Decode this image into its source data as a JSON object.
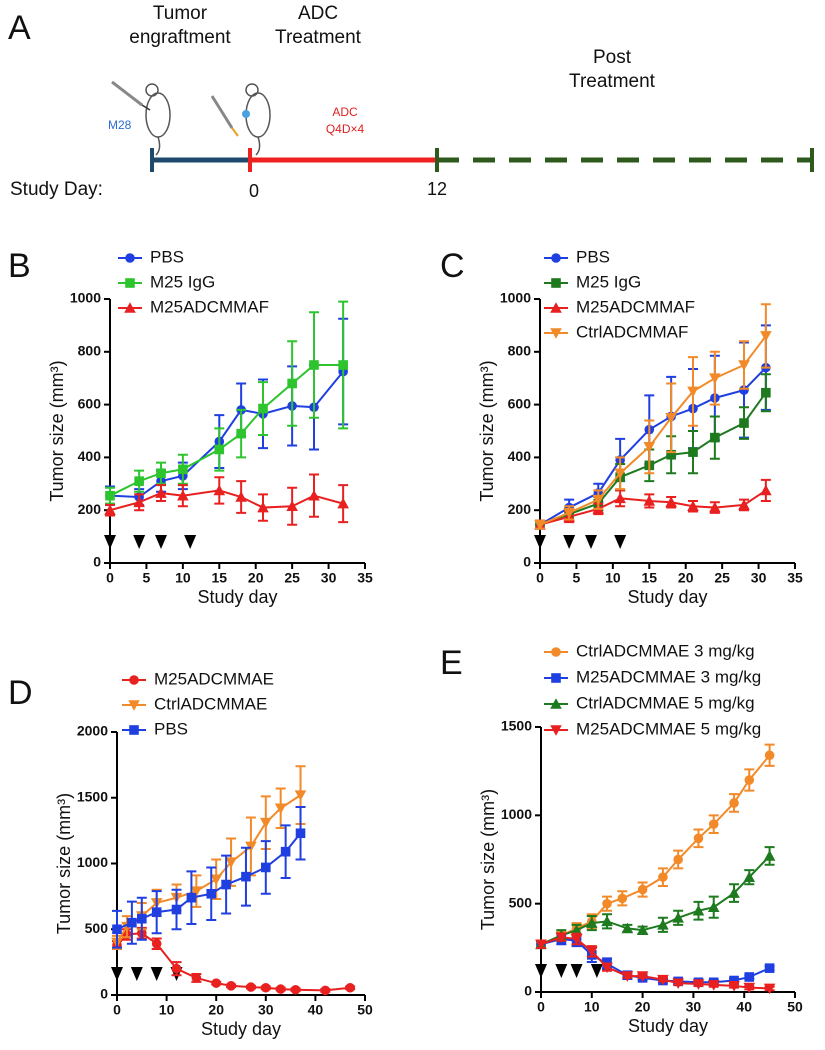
{
  "schematic": {
    "label": "A",
    "phases": [
      [
        "Tumor",
        "engraftment"
      ],
      [
        "ADC",
        "Treatment"
      ],
      [
        "Post",
        "Treatment"
      ]
    ],
    "cell_line": "M28",
    "adc": "ADC",
    "schedule": "Q4D×4",
    "study_day": "Study Day:",
    "days": [
      "0",
      "12"
    ]
  },
  "chart_data": [
    {
      "type": "line",
      "label": "B",
      "x_label": "Study day",
      "y_label": "Tumor size (mm³)",
      "xlim": [
        0,
        35
      ],
      "xticks": [
        0,
        5,
        10,
        15,
        20,
        25,
        30,
        35
      ],
      "ylim": [
        0,
        1000
      ],
      "yticks": [
        0,
        200,
        400,
        600,
        800,
        1000
      ],
      "treatment_days": [
        0,
        4,
        7,
        11
      ],
      "series": [
        {
          "name": "PBS",
          "color": "#1f3fe0",
          "marker": "circle",
          "x": [
            0,
            4,
            7,
            10,
            15,
            18,
            21,
            25,
            28,
            32
          ],
          "values": [
            255,
            250,
            310,
            330,
            460,
            580,
            565,
            595,
            590,
            725
          ],
          "errors": [
            35,
            30,
            40,
            50,
            100,
            100,
            130,
            150,
            160,
            200
          ]
        },
        {
          "name": "M25 IgG",
          "color": "#2ec42e",
          "marker": "square",
          "x": [
            0,
            4,
            7,
            10,
            15,
            18,
            21,
            25,
            28,
            32
          ],
          "values": [
            255,
            310,
            340,
            355,
            430,
            490,
            585,
            680,
            750,
            750
          ],
          "errors": [
            30,
            40,
            40,
            55,
            80,
            90,
            100,
            160,
            200,
            240
          ]
        },
        {
          "name": "M25ADCMMAF",
          "color": "#e82020",
          "marker": "triangle",
          "x": [
            0,
            4,
            7,
            10,
            15,
            18,
            21,
            25,
            28,
            32
          ],
          "values": [
            200,
            230,
            265,
            255,
            275,
            250,
            210,
            215,
            255,
            225
          ],
          "errors": [
            20,
            30,
            30,
            40,
            50,
            60,
            50,
            70,
            80,
            70
          ]
        }
      ]
    },
    {
      "type": "line",
      "label": "C",
      "x_label": "Study day",
      "y_label": "Tumor size (mm³)",
      "xlim": [
        0,
        35
      ],
      "xticks": [
        0,
        5,
        10,
        15,
        20,
        25,
        30,
        35
      ],
      "ylim": [
        0,
        1000
      ],
      "yticks": [
        0,
        200,
        400,
        600,
        800,
        1000
      ],
      "treatment_days": [
        0,
        4,
        7,
        11
      ],
      "series": [
        {
          "name": "PBS",
          "color": "#1f3fe0",
          "marker": "circle",
          "x": [
            0,
            4,
            8,
            11,
            15,
            18,
            21,
            24,
            28,
            31
          ],
          "values": [
            145,
            210,
            265,
            390,
            505,
            555,
            585,
            625,
            655,
            740
          ],
          "errors": [
            15,
            30,
            35,
            80,
            130,
            150,
            150,
            160,
            180,
            160
          ]
        },
        {
          "name": "M25 IgG",
          "color": "#1e7a1e",
          "marker": "square",
          "x": [
            0,
            4,
            8,
            11,
            15,
            18,
            21,
            24,
            28,
            31
          ],
          "values": [
            145,
            185,
            225,
            325,
            370,
            410,
            420,
            475,
            530,
            645
          ],
          "errors": [
            15,
            20,
            25,
            50,
            60,
            70,
            80,
            80,
            60,
            70
          ]
        },
        {
          "name": "M25ADCMMAF",
          "color": "#e82020",
          "marker": "triangle",
          "x": [
            0,
            4,
            8,
            11,
            15,
            18,
            21,
            24,
            28,
            31
          ],
          "values": [
            145,
            175,
            205,
            245,
            235,
            230,
            215,
            210,
            220,
            275
          ],
          "errors": [
            15,
            20,
            20,
            30,
            25,
            20,
            20,
            20,
            20,
            40
          ]
        },
        {
          "name": "CtrlADCMMAF",
          "color": "#f28a2a",
          "marker": "triangle-down",
          "x": [
            0,
            4,
            8,
            11,
            15,
            18,
            21,
            24,
            28,
            31
          ],
          "values": [
            145,
            190,
            240,
            340,
            440,
            550,
            650,
            700,
            750,
            860
          ],
          "errors": [
            15,
            25,
            35,
            60,
            100,
            130,
            130,
            100,
            90,
            120
          ]
        }
      ]
    },
    {
      "type": "line",
      "label": "D",
      "x_label": "Study day",
      "y_label": "Tumor size (mm³)",
      "xlim": [
        0,
        50
      ],
      "xticks": [
        0,
        10,
        20,
        30,
        40,
        50
      ],
      "ylim": [
        0,
        2000
      ],
      "yticks": [
        0,
        500,
        1000,
        1500,
        2000
      ],
      "treatment_days": [
        0,
        4,
        8,
        12
      ],
      "series": [
        {
          "name": "M25ADCMMAE",
          "color": "#e82020",
          "marker": "circle",
          "x": [
            0,
            2,
            5,
            8,
            12,
            16,
            20,
            23,
            27,
            30,
            33,
            36,
            42,
            47
          ],
          "values": [
            380,
            460,
            470,
            390,
            200,
            130,
            90,
            70,
            60,
            55,
            45,
            40,
            35,
            55
          ],
          "errors": [
            30,
            40,
            40,
            40,
            50,
            30,
            10,
            10,
            10,
            10,
            10,
            10,
            10,
            10
          ]
        },
        {
          "name": "CtrlADCMMAE",
          "color": "#f28a2a",
          "marker": "triangle-down",
          "x": [
            0,
            2,
            5,
            8,
            12,
            16,
            20,
            23,
            27,
            30,
            33,
            37
          ],
          "values": [
            400,
            520,
            600,
            700,
            740,
            790,
            880,
            1010,
            1130,
            1310,
            1420,
            1520
          ],
          "errors": [
            50,
            80,
            100,
            100,
            100,
            120,
            150,
            180,
            220,
            200,
            150,
            220
          ]
        },
        {
          "name": "PBS",
          "color": "#1f3fe0",
          "marker": "square",
          "x": [
            0,
            3,
            5,
            8,
            12,
            15,
            19,
            22,
            26,
            30,
            34,
            37
          ],
          "values": [
            500,
            550,
            580,
            630,
            650,
            740,
            770,
            840,
            900,
            970,
            1090,
            1230
          ],
          "errors": [
            140,
            160,
            160,
            160,
            150,
            200,
            200,
            220,
            220,
            200,
            200,
            200
          ]
        }
      ]
    },
    {
      "type": "line",
      "label": "E",
      "x_label": "Study day",
      "y_label": "Tumor size (mm³)",
      "xlim": [
        0,
        50
      ],
      "xticks": [
        0,
        10,
        20,
        30,
        40,
        50
      ],
      "ylim": [
        0,
        1500
      ],
      "yticks": [
        0,
        500,
        1000,
        1500
      ],
      "treatment_days": [
        0,
        4,
        7,
        11
      ],
      "series": [
        {
          "name": "CtrlADCMMAE 3 mg/kg",
          "color": "#f28a2a",
          "marker": "circle",
          "x": [
            0,
            4,
            7,
            10,
            13,
            16,
            20,
            24,
            27,
            31,
            34,
            38,
            41,
            45
          ],
          "values": [
            270,
            320,
            360,
            400,
            500,
            530,
            580,
            650,
            750,
            870,
            950,
            1070,
            1200,
            1340
          ],
          "errors": [
            20,
            20,
            30,
            40,
            40,
            40,
            40,
            50,
            50,
            50,
            50,
            50,
            60,
            60
          ]
        },
        {
          "name": "M25ADCMMAE 3 mg/kg",
          "color": "#1f3fe0",
          "marker": "square",
          "x": [
            0,
            4,
            7,
            10,
            13,
            17,
            20,
            24,
            27,
            31,
            34,
            38,
            41,
            45
          ],
          "values": [
            270,
            300,
            290,
            210,
            160,
            95,
            80,
            65,
            60,
            55,
            55,
            65,
            85,
            135
          ],
          "errors": [
            20,
            30,
            30,
            40,
            30,
            20,
            10,
            10,
            10,
            10,
            10,
            10,
            10,
            10
          ]
        },
        {
          "name": "CtrlADCMMAE 5 mg/kg",
          "color": "#1e7a1e",
          "marker": "triangle",
          "x": [
            0,
            4,
            7,
            10,
            13,
            17,
            20,
            24,
            27,
            31,
            34,
            38,
            41,
            45
          ],
          "values": [
            270,
            320,
            350,
            390,
            400,
            360,
            350,
            380,
            420,
            460,
            480,
            560,
            650,
            770
          ],
          "errors": [
            20,
            30,
            30,
            40,
            40,
            20,
            20,
            40,
            40,
            50,
            60,
            50,
            40,
            50
          ]
        },
        {
          "name": "M25ADCMMAE 5 mg/kg",
          "color": "#e82020",
          "marker": "triangle-down",
          "x": [
            0,
            4,
            7,
            10,
            13,
            17,
            20,
            24,
            27,
            31,
            34,
            38,
            41,
            45
          ],
          "values": [
            270,
            310,
            300,
            230,
            140,
            90,
            90,
            70,
            50,
            45,
            40,
            35,
            25,
            20
          ],
          "errors": [
            20,
            20,
            30,
            30,
            20,
            10,
            10,
            10,
            10,
            10,
            10,
            10,
            10,
            10
          ]
        }
      ]
    }
  ]
}
